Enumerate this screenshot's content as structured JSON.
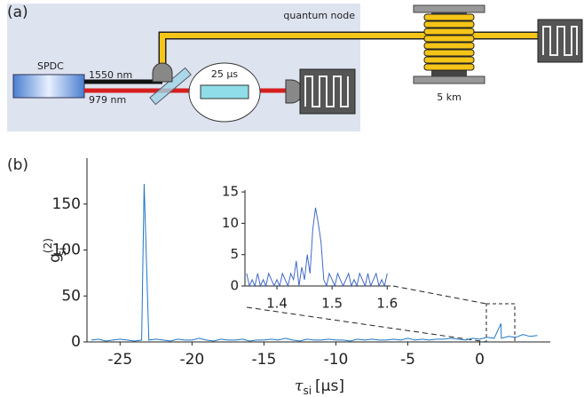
{
  "panel_a": {
    "label": "(a)",
    "node_label": "quantum node",
    "source": "SPDC",
    "wavelength_1": "1550 nm",
    "wavelength_2": "979 nm",
    "memory": "25 µs",
    "fiber": "5 km"
  },
  "panel_b_label": "(b)",
  "chart_data": [
    {
      "type": "line",
      "color": "#1f77c4",
      "ylabel": "g",
      "ylabel_sup": "(2)",
      "ylabel_sub": "si",
      "xlabel": "τ",
      "xlabel_sub": "si",
      "xlabel_unit": "[µs]",
      "xlim": [
        -27.3,
        4.9
      ],
      "ylim": [
        0,
        200
      ],
      "xticks": [
        -25,
        -20,
        -15,
        -10,
        -5,
        0
      ],
      "yticks": [
        0,
        50,
        100,
        150
      ],
      "series": [
        {
          "name": null,
          "color": "#1f77c4",
          "x": [
            -27,
            -26.5,
            -26,
            -25.5,
            -25,
            -24.5,
            -24,
            -23.5,
            -23.33,
            -23,
            -22.5,
            -22,
            -21.5,
            -21,
            -20.5,
            -20,
            -19.5,
            -19,
            -18.5,
            -18,
            -17.5,
            -17,
            -16.5,
            -16,
            -15.5,
            -15,
            -14.5,
            -14,
            -13.5,
            -13,
            -12.5,
            -12,
            -11.5,
            -11,
            -10.5,
            -10,
            -9.5,
            -9,
            -8.5,
            -8,
            -7.5,
            -7,
            -6.5,
            -6,
            -5.5,
            -5,
            -4.5,
            -4,
            -3.5,
            -3,
            -2.5,
            -2,
            -1.5,
            -1,
            -0.5,
            0,
            0.5,
            1,
            1.47,
            1.5,
            2,
            2.5,
            3,
            3.5,
            4
          ],
          "values": [
            2,
            3,
            1,
            2,
            3,
            2,
            1,
            2,
            172,
            2,
            3,
            2,
            1,
            3,
            2,
            2,
            4,
            2,
            1,
            3,
            2,
            2,
            3,
            1,
            2,
            2,
            3,
            2,
            4,
            2,
            1,
            3,
            2,
            2,
            3,
            2,
            2,
            1,
            3,
            2,
            3,
            2,
            2,
            3,
            2,
            4,
            2,
            3,
            2,
            3,
            3,
            4,
            3,
            2,
            4,
            3,
            5,
            4,
            20,
            4,
            6,
            5,
            8,
            6,
            7
          ]
        }
      ]
    },
    {
      "type": "line",
      "color": "#4169c8",
      "xlim": [
        1.342,
        1.606
      ],
      "ylim": [
        0,
        15.3
      ],
      "xticks": [
        1.4,
        1.5,
        1.6
      ],
      "yticks": [
        0,
        5,
        10,
        15
      ],
      "series": [
        {
          "name": null,
          "color": "#4169c8",
          "x": [
            1.345,
            1.35,
            1.355,
            1.36,
            1.365,
            1.37,
            1.375,
            1.38,
            1.385,
            1.39,
            1.395,
            1.4,
            1.405,
            1.41,
            1.415,
            1.42,
            1.425,
            1.43,
            1.435,
            1.44,
            1.445,
            1.45,
            1.455,
            1.46,
            1.465,
            1.47,
            1.475,
            1.48,
            1.485,
            1.49,
            1.495,
            1.5,
            1.505,
            1.51,
            1.515,
            1.52,
            1.525,
            1.53,
            1.535,
            1.54,
            1.545,
            1.55,
            1.555,
            1.56,
            1.565,
            1.57,
            1.575,
            1.58,
            1.585,
            1.59,
            1.595,
            1.6
          ],
          "values": [
            2,
            0,
            1,
            0,
            2,
            0,
            1,
            0,
            2,
            1,
            0,
            1,
            0,
            2,
            1,
            0,
            2,
            1,
            4,
            0,
            3,
            1,
            5,
            2,
            9,
            12.5,
            10,
            7,
            1,
            0,
            2,
            1,
            0,
            2,
            1,
            0,
            1,
            2,
            0,
            1,
            0,
            2,
            1,
            0,
            2,
            0,
            1,
            2,
            0,
            1,
            0,
            2
          ]
        }
      ]
    }
  ]
}
